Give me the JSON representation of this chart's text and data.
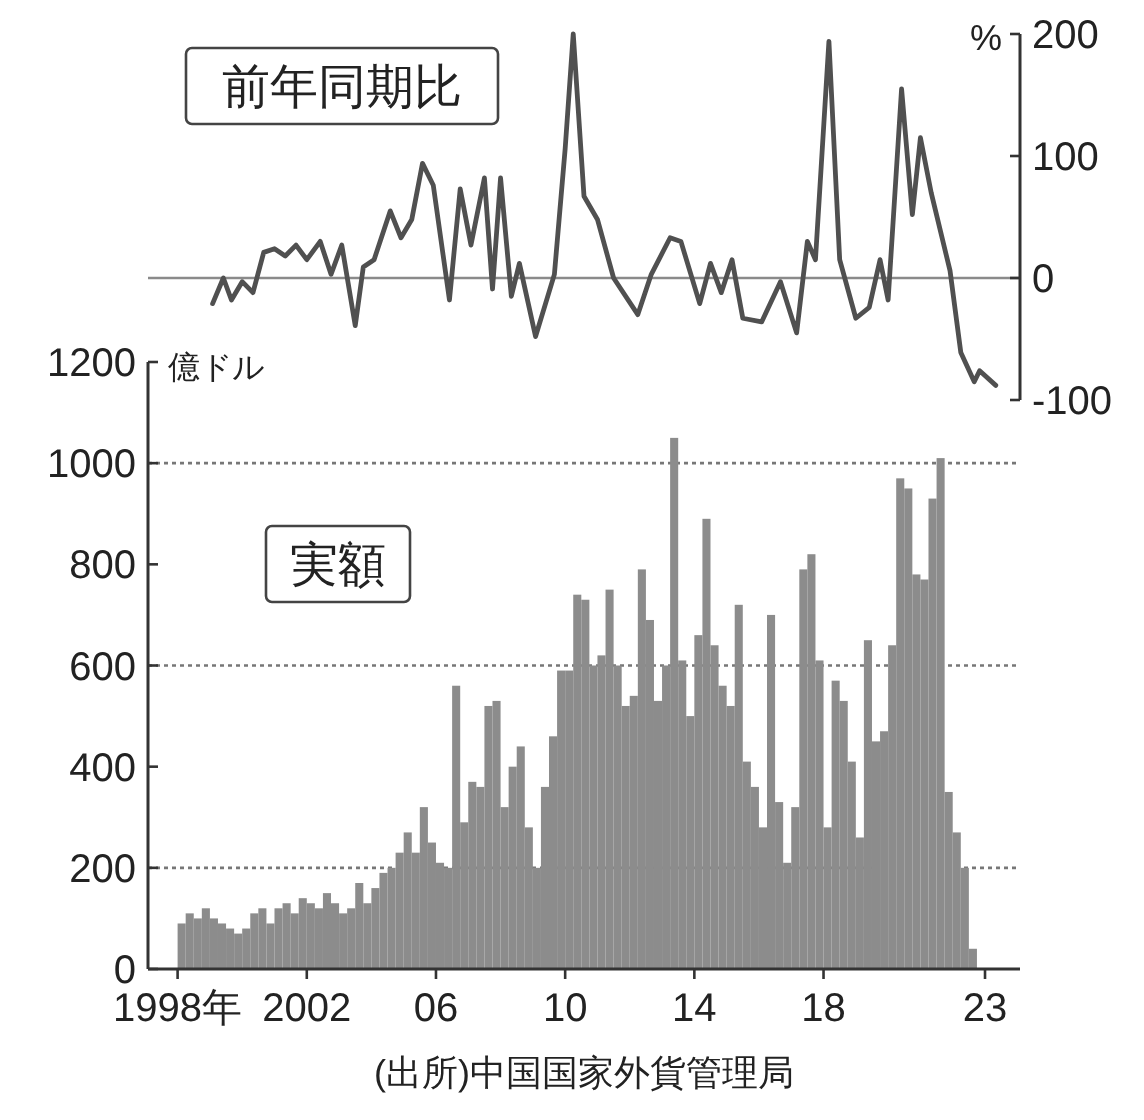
{
  "chart_data": [
    {
      "type": "line",
      "xlim": [
        "1997-02",
        "2024-02"
      ],
      "tick_labels": "y",
      "y2lim": [
        -100,
        200
      ],
      "y2ticks": [
        -100,
        0,
        100,
        200
      ],
      "y2label": "%",
      "ref_lines": [
        {
          "axis": "y2",
          "value": 0,
          "color": "#8a8a8a",
          "line_style": "solid"
        }
      ],
      "annotations": [
        "前年同期比"
      ],
      "series": [
        {
          "axis": "y2",
          "color": "#505050",
          "x": [
            "1999-02",
            "1999-06",
            "1999-09",
            "2000-01",
            "2000-05",
            "2000-09",
            "2001-01",
            "2001-05",
            "2001-09",
            "2002-01",
            "2002-06",
            "2002-10",
            "2003-02",
            "2003-07",
            "2003-10",
            "2004-02",
            "2004-08",
            "2004-12",
            "2005-04",
            "2005-08",
            "2005-12",
            "2006-06",
            "2006-10",
            "2007-02",
            "2007-07",
            "2007-10",
            "2008-01",
            "2008-05",
            "2008-08",
            "2009-02",
            "2009-09",
            "2010-01",
            "2010-04",
            "2010-08",
            "2011-01",
            "2011-07",
            "2012-04",
            "2012-09",
            "2013-04",
            "2013-08",
            "2014-03",
            "2014-07",
            "2014-11",
            "2015-03",
            "2015-07",
            "2016-02",
            "2016-09",
            "2017-03",
            "2017-07",
            "2017-10",
            "2018-03",
            "2018-07",
            "2019-01",
            "2019-06",
            "2019-10",
            "2020-01",
            "2020-06",
            "2020-10",
            "2021-01",
            "2021-05",
            "2021-12",
            "2022-04",
            "2022-09",
            "2022-11",
            "2023-05"
          ],
          "values": [
            -21,
            0,
            -18,
            -3,
            -12,
            21,
            24,
            18,
            27,
            15,
            30,
            3,
            27,
            -39,
            9,
            15,
            55,
            33,
            48,
            94,
            76,
            -18,
            73,
            27,
            82,
            -9,
            82,
            -15,
            12,
            -48,
            3,
            106,
            200,
            67,
            48,
            0,
            -30,
            3,
            33,
            30,
            -21,
            12,
            -12,
            15,
            -33,
            -36,
            -3,
            -45,
            30,
            15,
            194,
            15,
            -33,
            -24,
            15,
            -18,
            155,
            52,
            115,
            70,
            6,
            -61,
            -85,
            -76,
            -88
          ]
        }
      ]
    },
    {
      "type": "bar",
      "color": "#8c8c8c",
      "xlim": [
        "1997-02",
        "2024-02"
      ],
      "xticks": [
        {
          "value": "1998-01",
          "label": "1998年"
        },
        {
          "value": "2002-01",
          "label": "2002"
        },
        {
          "value": "2006-01",
          "label": "06"
        },
        {
          "value": "2010-01",
          "label": "10"
        },
        {
          "value": "2014-01",
          "label": "14"
        },
        {
          "value": "2018-01",
          "label": "18"
        },
        {
          "value": "2023-01",
          "label": "23"
        }
      ],
      "ylim": [
        0,
        1200
      ],
      "yticks": [
        0,
        200,
        400,
        600,
        800,
        1000,
        1200
      ],
      "ylabel": "億ドル",
      "ref_lines": [
        {
          "axis": "y",
          "value": 200,
          "line_style": "dotted",
          "color": "#777777"
        },
        {
          "axis": "y",
          "value": 600,
          "line_style": "dotted",
          "color": "#777777"
        },
        {
          "axis": "y",
          "value": 1000,
          "line_style": "dotted",
          "color": "#777777"
        }
      ],
      "annotations": [
        "実額",
        "(出所)中国国家外貨管理局"
      ],
      "x": [
        "1998-01",
        "1998-04",
        "1998-07",
        "1998-10",
        "1999-01",
        "1999-04",
        "1999-07",
        "1999-10",
        "2000-01",
        "2000-04",
        "2000-07",
        "2000-10",
        "2001-01",
        "2001-04",
        "2001-07",
        "2001-10",
        "2002-01",
        "2002-04",
        "2002-07",
        "2002-10",
        "2003-01",
        "2003-04",
        "2003-07",
        "2003-10",
        "2004-01",
        "2004-04",
        "2004-07",
        "2004-10",
        "2005-01",
        "2005-04",
        "2005-07",
        "2005-10",
        "2006-01",
        "2006-04",
        "2006-07",
        "2006-10",
        "2007-01",
        "2007-04",
        "2007-07",
        "2007-10",
        "2008-01",
        "2008-04",
        "2008-07",
        "2008-10",
        "2009-01",
        "2009-04",
        "2009-07",
        "2009-10",
        "2010-01",
        "2010-04",
        "2010-07",
        "2010-10",
        "2011-01",
        "2011-04",
        "2011-07",
        "2011-10",
        "2012-01",
        "2012-04",
        "2012-07",
        "2012-10",
        "2013-01",
        "2013-04",
        "2013-07",
        "2013-10",
        "2014-01",
        "2014-04",
        "2014-07",
        "2014-10",
        "2015-01",
        "2015-04",
        "2015-07",
        "2015-10",
        "2016-01",
        "2016-04",
        "2016-07",
        "2016-10",
        "2017-01",
        "2017-04",
        "2017-07",
        "2017-10",
        "2018-01",
        "2018-04",
        "2018-07",
        "2018-10",
        "2019-01",
        "2019-04",
        "2019-07",
        "2019-10",
        "2020-01",
        "2020-04",
        "2020-07",
        "2020-10",
        "2021-01",
        "2021-04",
        "2021-07",
        "2021-10",
        "2022-01",
        "2022-04",
        "2022-07"
      ],
      "values": [
        90,
        110,
        100,
        120,
        100,
        90,
        80,
        70,
        80,
        110,
        120,
        90,
        120,
        130,
        110,
        140,
        130,
        120,
        150,
        130,
        110,
        120,
        170,
        130,
        160,
        190,
        200,
        230,
        270,
        230,
        320,
        250,
        210,
        200,
        560,
        290,
        370,
        360,
        520,
        530,
        320,
        400,
        440,
        280,
        200,
        360,
        460,
        590,
        590,
        740,
        730,
        600,
        620,
        750,
        600,
        520,
        540,
        790,
        690,
        530,
        600,
        1050,
        610,
        500,
        660,
        890,
        640,
        560,
        520,
        720,
        410,
        360,
        280,
        700,
        330,
        210,
        320,
        790,
        820,
        610,
        280,
        570,
        530,
        410,
        260,
        650,
        450,
        470,
        640,
        970,
        950,
        780,
        770,
        930,
        1010,
        350,
        270,
        200,
        40
      ]
    }
  ]
}
